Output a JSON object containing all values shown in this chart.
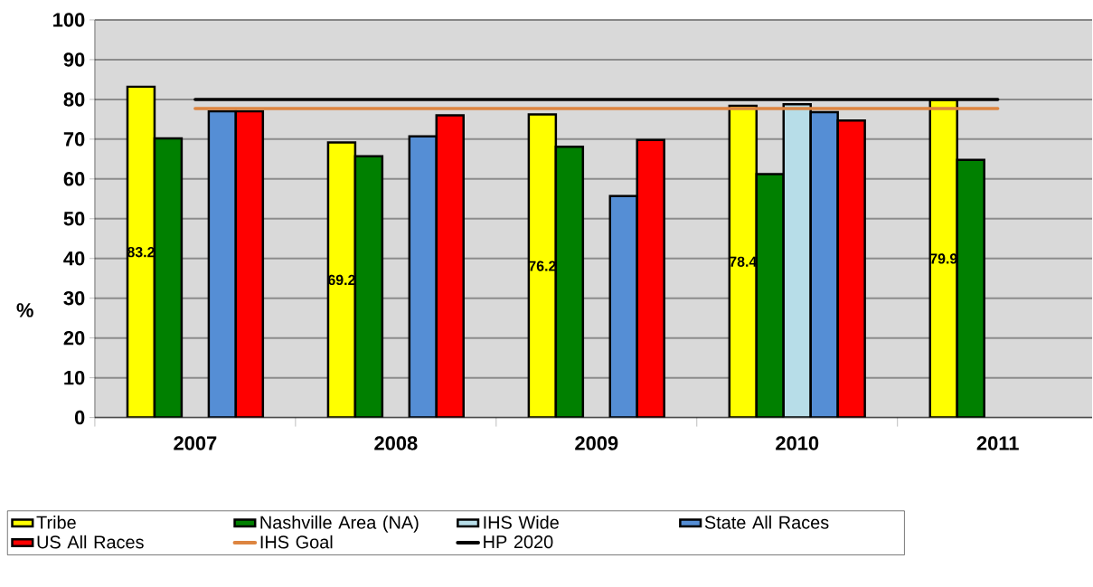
{
  "chart_data": {
    "type": "bar",
    "ylabel": "%",
    "categories": [
      "2007",
      "2008",
      "2009",
      "2010",
      "2011"
    ],
    "series": [
      {
        "name": "Tribe",
        "color": "#ffff00",
        "values": [
          83.2,
          69.2,
          76.2,
          78.4,
          79.9
        ],
        "value_labels": [
          "83.2",
          "69.2",
          "76.2",
          "78.4",
          "79.9"
        ]
      },
      {
        "name": "Nashville Area (NA)",
        "color": "#008000",
        "values": [
          70.2,
          65.7,
          68.1,
          61.2,
          64.8
        ]
      },
      {
        "name": "IHS Wide",
        "color": "#b7dde8",
        "values": [
          null,
          null,
          null,
          78.8,
          null
        ]
      },
      {
        "name": "State All Races",
        "color": "#558ed5",
        "values": [
          77.0,
          70.7,
          55.7,
          76.8,
          null
        ]
      },
      {
        "name": "US All Races",
        "color": "#ff0000",
        "values": [
          77.0,
          76.0,
          69.8,
          74.7,
          null
        ]
      },
      {
        "name": "IHS Goal",
        "type": "line",
        "color": "#dd8540",
        "values": [
          77.7,
          77.7,
          77.7,
          77.7,
          77.7
        ]
      },
      {
        "name": "HP 2020",
        "type": "line",
        "color": "#000000",
        "values": [
          80,
          80,
          80,
          80,
          80
        ]
      }
    ],
    "ylim": [
      0,
      100
    ],
    "yticks": [
      0,
      10,
      20,
      30,
      40,
      50,
      60,
      70,
      80,
      90,
      100
    ],
    "grid": "y",
    "legend": "bottom",
    "marker": "none"
  }
}
